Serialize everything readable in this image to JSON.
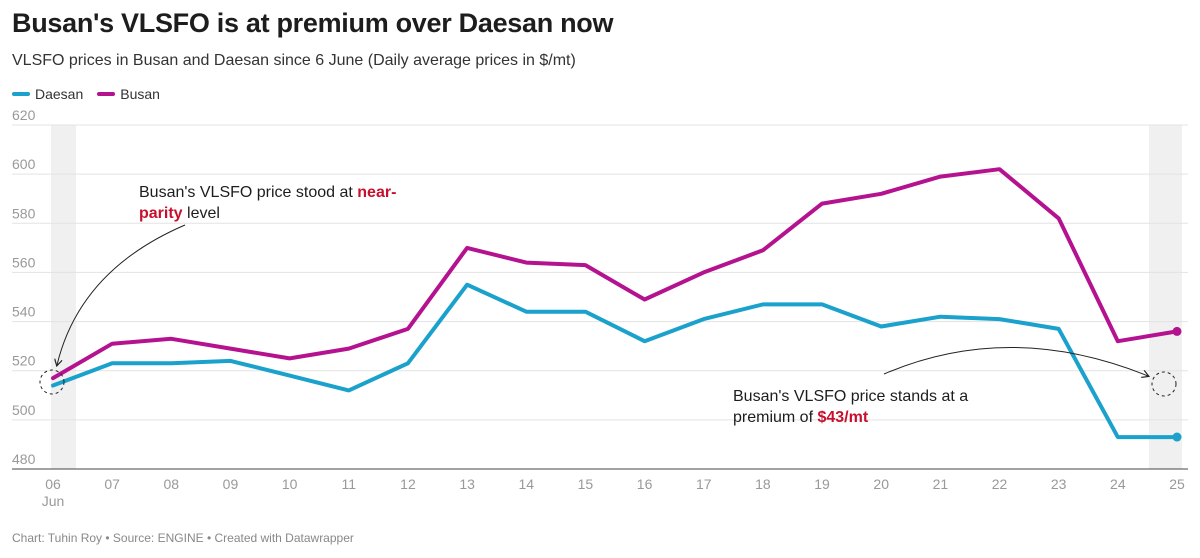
{
  "header": {
    "title": "Busan's VLSFO is at premium over Daesan now",
    "subtitle": "VLSFO prices in Busan and Daesan since 6 June (Daily average prices in $/mt)"
  },
  "footer": "Chart: Tuhin Roy • Source: ENGINE • Created with Datawrapper",
  "colors": {
    "daesan": "#1aa1cc",
    "busan": "#b5128f",
    "highlight": "#c8102e",
    "shade": "#f0f0f0"
  },
  "chart_data": {
    "type": "line",
    "x": [
      "06",
      "07",
      "08",
      "09",
      "10",
      "11",
      "12",
      "13",
      "14",
      "15",
      "16",
      "17",
      "18",
      "19",
      "20",
      "21",
      "22",
      "23",
      "24",
      "25"
    ],
    "x_sub_label": "Jun",
    "ylim": [
      480,
      620
    ],
    "yticks": [
      480,
      500,
      520,
      540,
      560,
      580,
      600,
      620
    ],
    "grid": true,
    "legend_position": "top-left",
    "shaded_x": [
      "06",
      "25"
    ],
    "series": [
      {
        "name": "Daesan",
        "values": [
          514,
          523,
          523,
          524,
          518,
          512,
          523,
          555,
          544,
          544,
          532,
          541,
          547,
          547,
          538,
          542,
          541,
          537,
          493,
          493
        ]
      },
      {
        "name": "Busan",
        "values": [
          517,
          531,
          533,
          529,
          525,
          529,
          537,
          570,
          564,
          563,
          549,
          560,
          569,
          588,
          592,
          599,
          602,
          582,
          532,
          536
        ]
      }
    ],
    "annotations": [
      {
        "lines": [
          [
            "Busan's VLSFO price stood at ",
            "near-"
          ],
          [
            "",
            "parity",
            " level"
          ]
        ]
      },
      {
        "lines": [
          [
            "Busan's VLSFO price stands at a"
          ],
          [
            "premium of ",
            "$43/mt"
          ]
        ]
      }
    ]
  }
}
